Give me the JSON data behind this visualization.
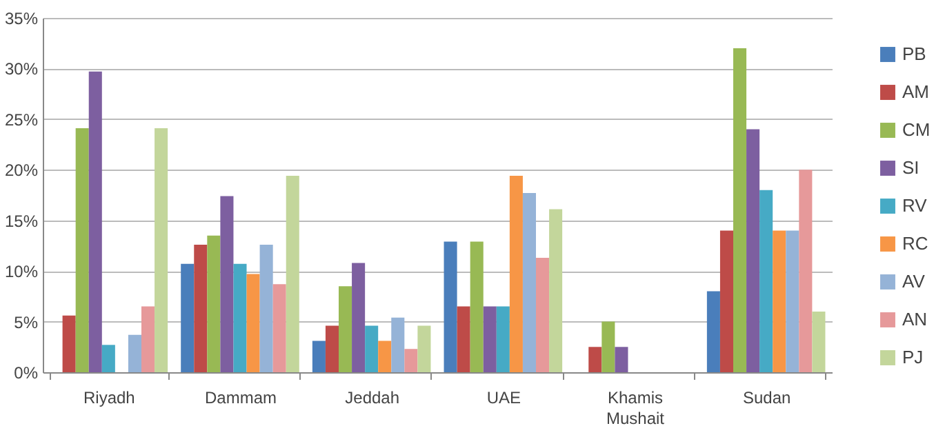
{
  "chart_data": {
    "type": "bar",
    "categories": [
      "Riyadh",
      "Dammam",
      "Jeddah",
      "UAE",
      "Khamis Mushait",
      "Sudan"
    ],
    "series": [
      {
        "name": "PB",
        "color": "#4a7ebb",
        "values": [
          0,
          10.7,
          3.1,
          12.9,
          0,
          8
        ]
      },
      {
        "name": "AM",
        "color": "#be4b48",
        "values": [
          5.6,
          12.6,
          4.6,
          6.5,
          2.5,
          14
        ]
      },
      {
        "name": "CM",
        "color": "#98b954",
        "values": [
          24.1,
          13.5,
          8.5,
          12.9,
          5,
          32
        ]
      },
      {
        "name": "SI",
        "color": "#7d5fa0",
        "values": [
          29.7,
          17.4,
          10.8,
          6.5,
          2.5,
          24
        ]
      },
      {
        "name": "RV",
        "color": "#46aac5",
        "values": [
          2.7,
          10.7,
          4.6,
          6.5,
          0,
          18
        ]
      },
      {
        "name": "RC",
        "color": "#f79646",
        "values": [
          0,
          9.7,
          3.1,
          19.4,
          0,
          14
        ]
      },
      {
        "name": "AV",
        "color": "#95b3d7",
        "values": [
          3.7,
          12.6,
          5.4,
          17.7,
          0,
          14
        ]
      },
      {
        "name": "AN",
        "color": "#e6999a",
        "values": [
          6.5,
          8.7,
          2.3,
          11.3,
          0,
          20
        ]
      },
      {
        "name": "PJ",
        "color": "#c3d69b",
        "values": [
          24.1,
          19.4,
          4.6,
          16.1,
          0,
          6
        ]
      }
    ],
    "ylim": [
      0,
      35
    ],
    "yticks": [
      {
        "value": 0,
        "label": "0%"
      },
      {
        "value": 5,
        "label": "5%"
      },
      {
        "value": 10,
        "label": "10%"
      },
      {
        "value": 15,
        "label": "15%"
      },
      {
        "value": 20,
        "label": "20%"
      },
      {
        "value": 25,
        "label": "25%"
      },
      {
        "value": 30,
        "label": "30%"
      },
      {
        "value": 35,
        "label": "35%"
      }
    ],
    "grid": "y",
    "legend": "right"
  }
}
